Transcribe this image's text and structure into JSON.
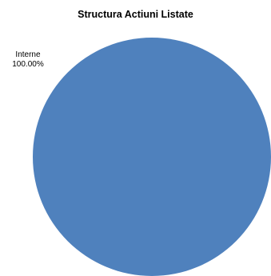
{
  "chart_data": {
    "type": "pie",
    "title": "Structura Actiuni Listate",
    "slices": [
      {
        "label": "Interne",
        "value": 100.0,
        "value_label": "100.00%",
        "color": "#4F81BD"
      }
    ],
    "legend": "none"
  }
}
